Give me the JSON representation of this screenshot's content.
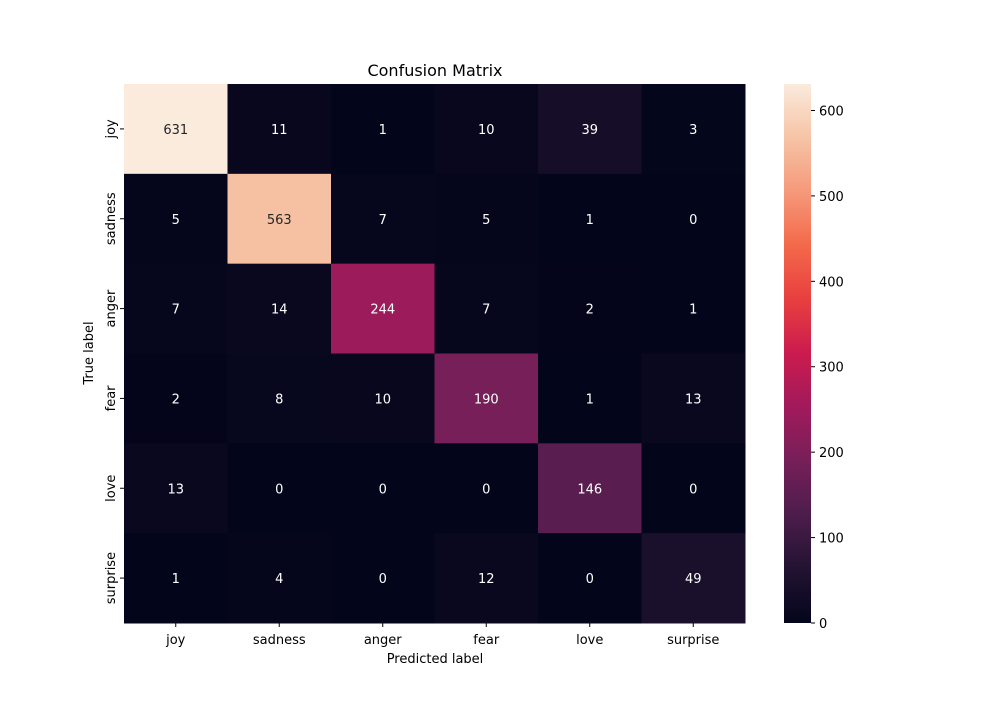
{
  "chart_data": {
    "type": "heatmap",
    "title": "Confusion Matrix",
    "xlabel": "Predicted label",
    "ylabel": "True label",
    "x_categories": [
      "joy",
      "sadness",
      "anger",
      "fear",
      "love",
      "surprise"
    ],
    "y_categories": [
      "joy",
      "sadness",
      "anger",
      "fear",
      "love",
      "surprise"
    ],
    "values": [
      [
        631,
        11,
        1,
        10,
        39,
        3
      ],
      [
        5,
        563,
        7,
        5,
        1,
        0
      ],
      [
        7,
        14,
        244,
        7,
        2,
        1
      ],
      [
        2,
        8,
        10,
        190,
        1,
        13
      ],
      [
        13,
        0,
        0,
        0,
        146,
        0
      ],
      [
        1,
        4,
        0,
        12,
        0,
        49
      ]
    ],
    "colormap": "rocket",
    "colorbar": {
      "range": [
        0,
        631
      ],
      "ticks": [
        0,
        100,
        200,
        300,
        400,
        500,
        600
      ]
    }
  }
}
